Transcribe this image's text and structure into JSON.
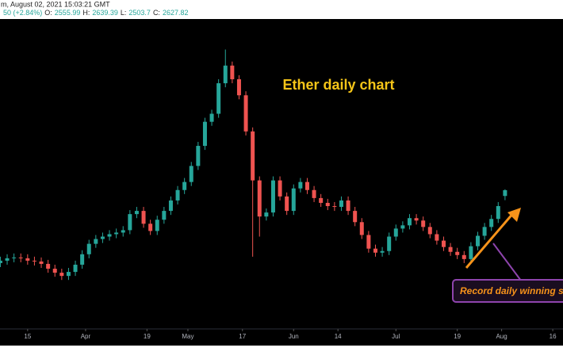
{
  "chart_data": {
    "type": "candlestick",
    "header": {
      "timestamp": "m, August 02, 2021 15:03:21 GMT",
      "change": "50 (+2.84%)",
      "open_label": "O:",
      "high_label": "H:",
      "low_label": "L:",
      "close_label": "C:"
    },
    "title": "Ether daily chart",
    "callout": "Record daily winning s",
    "up_color": "#26a69a",
    "down_color": "#ef5350",
    "xlim": [
      -8.1,
      157
    ],
    "ylim": [
      900,
      4760
    ],
    "xticks": [
      {
        "value": 0,
        "label": "15"
      },
      {
        "value": 17,
        "label": "Apr"
      },
      {
        "value": 35,
        "label": "19"
      },
      {
        "value": 47,
        "label": "May"
      },
      {
        "value": 63,
        "label": "17"
      },
      {
        "value": 78,
        "label": "Jun"
      },
      {
        "value": 91,
        "label": "14"
      },
      {
        "value": 108,
        "label": "Jul"
      },
      {
        "value": 126,
        "label": "19"
      },
      {
        "value": 139,
        "label": "Aug"
      },
      {
        "value": 154,
        "label": "16"
      }
    ],
    "x": [
      -8,
      -6,
      -4,
      -2,
      0,
      2,
      4,
      6,
      8,
      10,
      12,
      14,
      16,
      18,
      20,
      22,
      24,
      26,
      28,
      30,
      32,
      34,
      36,
      38,
      40,
      42,
      44,
      46,
      48,
      50,
      52,
      54,
      56,
      58,
      60,
      62,
      64,
      66,
      68,
      70,
      72,
      74,
      76,
      78,
      80,
      82,
      84,
      86,
      88,
      90,
      92,
      94,
      96,
      98,
      100,
      102,
      104,
      106,
      108,
      110,
      112,
      114,
      116,
      118,
      120,
      122,
      124,
      126,
      128,
      130,
      132,
      134,
      136,
      138,
      140
    ],
    "open": [
      1720,
      1750,
      1780,
      1790,
      1780,
      1750,
      1740,
      1710,
      1650,
      1600,
      1560,
      1610,
      1700,
      1830,
      1960,
      2020,
      2050,
      2080,
      2100,
      2130,
      2330,
      2370,
      2210,
      2120,
      2260,
      2370,
      2500,
      2630,
      2730,
      2930,
      3180,
      3480,
      3580,
      3960,
      4180,
      4010,
      3810,
      3360,
      2750,
      2300,
      2350,
      2750,
      2550,
      2370,
      2650,
      2730,
      2630,
      2530,
      2470,
      2430,
      2420,
      2500,
      2370,
      2230,
      2070,
      1900,
      1850,
      1870,
      2050,
      2150,
      2190,
      2280,
      2250,
      2170,
      2080,
      2000,
      1920,
      1860,
      1820,
      1770,
      1930,
      2060,
      2170,
      2270,
      2555.99
    ],
    "high": [
      1800,
      1830,
      1840,
      1840,
      1830,
      1800,
      1790,
      1760,
      1700,
      1650,
      1660,
      1750,
      1880,
      2010,
      2070,
      2100,
      2130,
      2150,
      2180,
      2380,
      2420,
      2420,
      2260,
      2310,
      2420,
      2550,
      2680,
      2780,
      2980,
      3230,
      3530,
      3630,
      4010,
      4380,
      4230,
      4060,
      3860,
      3410,
      2800,
      2400,
      2800,
      2800,
      2600,
      2700,
      2780,
      2780,
      2680,
      2580,
      2520,
      2480,
      2550,
      2550,
      2420,
      2280,
      2120,
      1950,
      1920,
      2100,
      2200,
      2240,
      2330,
      2330,
      2300,
      2220,
      2130,
      2050,
      1970,
      1910,
      1870,
      1980,
      2110,
      2220,
      2320,
      2480,
      2639.39
    ],
    "low": [
      1670,
      1700,
      1730,
      1730,
      1700,
      1690,
      1660,
      1600,
      1550,
      1510,
      1510,
      1560,
      1650,
      1780,
      1910,
      1970,
      2000,
      2030,
      2050,
      2080,
      2280,
      2160,
      2070,
      2070,
      2210,
      2320,
      2450,
      2580,
      2680,
      2880,
      3130,
      3430,
      3530,
      3910,
      3960,
      3760,
      3310,
      1800,
      2050,
      2250,
      2300,
      2500,
      2320,
      2320,
      2600,
      2580,
      2480,
      2420,
      2380,
      2370,
      2370,
      2320,
      2180,
      2020,
      1850,
      1800,
      1800,
      1820,
      2000,
      2100,
      2140,
      2200,
      2120,
      2030,
      1950,
      1870,
      1810,
      1770,
      1720,
      1720,
      1880,
      2010,
      2120,
      2220,
      2503.7
    ],
    "close": [
      1750,
      1780,
      1790,
      1780,
      1750,
      1740,
      1710,
      1650,
      1600,
      1560,
      1610,
      1700,
      1830,
      1960,
      2020,
      2050,
      2080,
      2100,
      2130,
      2330,
      2370,
      2210,
      2120,
      2260,
      2370,
      2500,
      2630,
      2730,
      2930,
      3180,
      3480,
      3580,
      3960,
      4180,
      4010,
      3810,
      3360,
      2750,
      2300,
      2350,
      2750,
      2550,
      2370,
      2650,
      2730,
      2630,
      2530,
      2470,
      2430,
      2420,
      2500,
      2370,
      2230,
      2070,
      1900,
      1850,
      1870,
      2050,
      2150,
      2190,
      2280,
      2250,
      2170,
      2080,
      2000,
      1920,
      1860,
      1820,
      1770,
      1930,
      2060,
      2170,
      2270,
      2430,
      2627.82
    ]
  }
}
